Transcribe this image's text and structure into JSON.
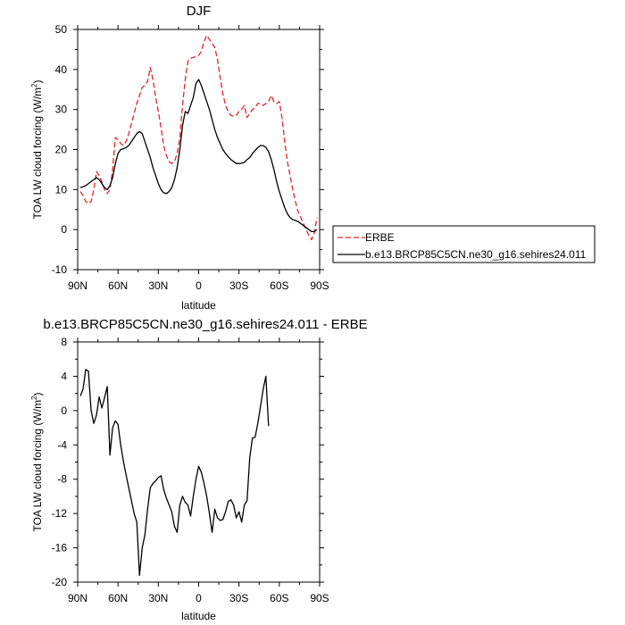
{
  "chart_data": [
    {
      "type": "line",
      "title": "DJF",
      "xlabel": "latitude",
      "ylabel_main": "TOA LW cloud forcing (W/m",
      "ylabel_sup": "2",
      "ylabel_close": ")",
      "xlim": [
        90,
        -90
      ],
      "ylim": [
        -10,
        50
      ],
      "xticks": [
        90,
        60,
        30,
        0,
        -30,
        -60,
        -90
      ],
      "xtick_labels": [
        "90N",
        "60N",
        "30N",
        "0",
        "30S",
        "60S",
        "90S"
      ],
      "yticks": [
        -10,
        0,
        10,
        20,
        30,
        40,
        50
      ],
      "ytick_labels": [
        "-10",
        "0",
        "10",
        "20",
        "30",
        "40",
        "50"
      ],
      "legend_position": "outside-right",
      "series": [
        {
          "name": "ERBE",
          "color": "#e3262a",
          "dash": "dashed",
          "x": [
            88,
            86,
            84,
            82,
            80,
            78,
            76,
            74,
            72,
            70,
            68,
            66,
            64,
            62,
            60,
            58,
            56,
            54,
            52,
            50,
            48,
            46,
            44,
            42,
            40,
            38,
            36,
            34,
            32,
            30,
            28,
            26,
            24,
            22,
            20,
            18,
            16,
            14,
            12,
            10,
            8,
            6,
            4,
            2,
            0,
            -2,
            -4,
            -6,
            -8,
            -10,
            -12,
            -14,
            -16,
            -18,
            -20,
            -22,
            -24,
            -26,
            -28,
            -30,
            -32,
            -34,
            -36,
            -38,
            -40,
            -42,
            -44,
            -46,
            -48,
            -50,
            -52,
            -54,
            -56,
            -58,
            -60,
            -62,
            -64,
            -66,
            -68,
            -70,
            -72,
            -74,
            -76,
            -78,
            -80,
            -82,
            -84,
            -86,
            -88
          ],
          "y": [
            9.5,
            8.5,
            7.0,
            6.5,
            7.0,
            10.0,
            14.5,
            13.5,
            12.0,
            10.0,
            9.0,
            10.0,
            15.0,
            23.0,
            22.5,
            21.5,
            21.0,
            22.0,
            24.0,
            26.5,
            29.0,
            31.5,
            33.5,
            35.5,
            36.0,
            37.0,
            40.5,
            37.5,
            33.0,
            29.5,
            25.5,
            21.0,
            18.5,
            17.0,
            16.5,
            17.0,
            19.0,
            23.0,
            31.0,
            37.5,
            42.0,
            42.8,
            43.0,
            43.2,
            43.5,
            44.5,
            47.0,
            48.5,
            47.5,
            46.5,
            45.5,
            42.5,
            38.0,
            34.0,
            31.0,
            29.5,
            28.5,
            28.3,
            28.5,
            29.5,
            30.0,
            31.0,
            28.0,
            29.0,
            30.0,
            30.5,
            31.5,
            31.5,
            31.0,
            31.5,
            32.0,
            33.5,
            32.0,
            31.5,
            32.0,
            28.0,
            22.0,
            17.0,
            13.5,
            10.0,
            7.0,
            4.5,
            3.0,
            1.5,
            0.0,
            -1.5,
            -2.5,
            -1.0,
            3.0
          ]
        },
        {
          "name": "b.e13.BRCP85C5CN.ne30_g16.sehires24.011",
          "color": "#000000",
          "dash": "solid",
          "x": [
            88,
            86,
            84,
            82,
            80,
            78,
            76,
            74,
            72,
            70,
            68,
            66,
            64,
            62,
            60,
            58,
            56,
            54,
            52,
            50,
            48,
            46,
            44,
            42,
            40,
            38,
            36,
            34,
            32,
            30,
            28,
            26,
            24,
            22,
            20,
            18,
            16,
            14,
            12,
            10,
            8,
            6,
            4,
            2,
            0,
            -2,
            -4,
            -6,
            -8,
            -10,
            -12,
            -14,
            -16,
            -18,
            -20,
            -22,
            -24,
            -26,
            -28,
            -30,
            -32,
            -34,
            -36,
            -38,
            -40,
            -42,
            -44,
            -46,
            -48,
            -50,
            -52,
            -54,
            -56,
            -58,
            -60,
            -62,
            -64,
            -66,
            -68,
            -70,
            -72,
            -74,
            -76,
            -78,
            -80,
            -82,
            -84,
            -86,
            -88
          ],
          "y": [
            10.5,
            10.7,
            11.0,
            11.5,
            12.0,
            12.5,
            13.0,
            12.5,
            11.5,
            10.5,
            10.0,
            11.0,
            13.0,
            16.5,
            19.0,
            20.0,
            20.2,
            20.5,
            21.0,
            22.0,
            23.0,
            24.0,
            24.5,
            24.0,
            22.0,
            20.0,
            18.0,
            15.5,
            13.5,
            11.5,
            10.0,
            9.2,
            9.0,
            9.5,
            10.5,
            12.5,
            15.5,
            20.0,
            26.0,
            29.5,
            29.0,
            31.0,
            33.0,
            36.5,
            37.5,
            36.0,
            34.0,
            32.0,
            30.0,
            27.5,
            25.0,
            23.0,
            21.5,
            20.0,
            19.0,
            18.2,
            17.5,
            17.0,
            16.5,
            16.5,
            16.6,
            16.8,
            17.5,
            18.0,
            19.0,
            19.8,
            20.5,
            21.0,
            21.0,
            20.5,
            19.5,
            17.5,
            15.0,
            12.0,
            9.5,
            7.5,
            5.5,
            4.0,
            3.0,
            2.5,
            2.3,
            2.0,
            1.5,
            1.0,
            0.5,
            0.0,
            -0.5,
            -0.5,
            0.0
          ]
        }
      ]
    },
    {
      "type": "line",
      "title": "b.e13.BRCP85C5CN.ne30_g16.sehires24.011 - ERBE",
      "xlabel": "latitude",
      "ylabel_main": "TOA LW cloud forcing (W/m",
      "ylabel_sup": "2",
      "ylabel_close": ")",
      "xlim": [
        90,
        -90
      ],
      "ylim": [
        -20,
        8
      ],
      "xticks": [
        90,
        60,
        30,
        0,
        -30,
        -60,
        -90
      ],
      "xtick_labels": [
        "90N",
        "60N",
        "30N",
        "0",
        "30S",
        "60S",
        "90S"
      ],
      "yticks": [
        -20,
        -16,
        -12,
        -8,
        -4,
        0,
        4,
        8
      ],
      "ytick_labels": [
        "-20",
        "-16",
        "-12",
        "-8",
        "-4",
        "0",
        "4",
        "8"
      ],
      "series": [
        {
          "color": "#000000",
          "dash": "solid",
          "x": [
            88,
            86,
            84,
            82,
            80,
            78,
            76,
            74,
            72,
            70,
            68,
            66,
            64,
            62,
            60,
            58,
            56,
            54,
            52,
            50,
            48,
            46,
            44,
            42,
            40,
            38,
            36,
            34,
            32,
            30,
            28,
            26,
            24,
            22,
            20,
            18,
            16,
            14,
            12,
            10,
            8,
            6,
            4,
            2,
            0,
            -2,
            -4,
            -6,
            -8,
            -10,
            -12,
            -14,
            -16,
            -18,
            -20,
            -22,
            -24,
            -26,
            -28,
            -30,
            -32,
            -34,
            -36,
            -38,
            -40,
            -42,
            -44,
            -46,
            -48,
            -50,
            -52,
            -54,
            -56,
            -58,
            -60,
            -62,
            -64,
            -66,
            -68,
            -70,
            -72,
            -74,
            -76,
            -78,
            -80,
            -82,
            -84,
            -86,
            -88
          ],
          "y": [
            1.7,
            2.5,
            4.8,
            4.6,
            0.0,
            -1.5,
            -0.5,
            1.6,
            0.3,
            1.5,
            2.8,
            -5.2,
            -2.0,
            -1.2,
            -1.6,
            -4.0,
            -5.9,
            -7.5,
            -9.0,
            -10.5,
            -12.0,
            -13.0,
            -19.2,
            -16.0,
            -14.5,
            -11.5,
            -9.0,
            -8.5,
            -8.2,
            -7.8,
            -7.6,
            -9.2,
            -10.2,
            -11.0,
            -11.8,
            -13.5,
            -14.2,
            -11.0,
            -10.0,
            -10.7,
            -11.0,
            -12.3,
            -10.0,
            -8.0,
            -6.5,
            -7.2,
            -8.5,
            -10.0,
            -12.0,
            -14.2,
            -11.5,
            -12.5,
            -12.8,
            -12.7,
            -11.8,
            -10.6,
            -10.4,
            -11.0,
            -12.5,
            -11.8,
            -13.0,
            -11.0,
            -10.5,
            -5.5,
            -3.2,
            -3.1,
            -1.5,
            0.5,
            2.5,
            4.0,
            -1.8,
            null,
            null,
            null,
            null,
            null,
            null,
            null,
            null,
            null,
            null,
            null,
            null,
            null,
            null,
            null,
            null,
            null,
            null
          ]
        }
      ]
    }
  ]
}
